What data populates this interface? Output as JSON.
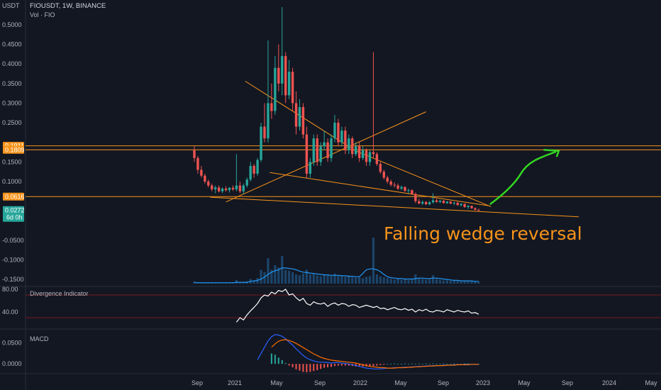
{
  "chart_data": {
    "type": "candlestick",
    "header": {
      "unit": "USDT",
      "symbol": "FIOUSDT, 1W, BINANCE",
      "volume_label": "Vol · FIO"
    },
    "price_axis": {
      "ylim": [
        -0.155,
        0.545
      ],
      "ticks": [
        "0.5000",
        "0.4500",
        "0.4000",
        "0.3500",
        "0.3000",
        "0.2500",
        "0.1500",
        "0.1000",
        "-0.0500",
        "-0.1000",
        "-0.1500"
      ],
      "tick_values": [
        0.5,
        0.45,
        0.4,
        0.35,
        0.3,
        0.25,
        0.15,
        0.1,
        -0.05,
        -0.1,
        -0.15
      ],
      "price_labels": [
        {
          "text": "0.1911",
          "value": 0.1911,
          "color": "#f7931a"
        },
        {
          "text": "0.1809",
          "value": 0.1809,
          "color": "#f7931a"
        },
        {
          "text": "0.0616",
          "value": 0.0616,
          "color": "#f7931a"
        },
        {
          "text": "0.0272",
          "value": 0.0272,
          "color": "#26a69a",
          "sub": "6d 0h"
        }
      ]
    },
    "x_axis": {
      "ticks": [
        "Sep",
        "2021",
        "May",
        "Sep",
        "2022",
        "May",
        "Sep",
        "2023",
        "May",
        "Sep",
        "2024",
        "May"
      ]
    },
    "horizontal_levels": [
      {
        "value": 0.1911,
        "color": "#f7931a"
      },
      {
        "value": 0.1809,
        "color": "#f7931a"
      },
      {
        "value": 0.0616,
        "color": "#f7931a"
      }
    ],
    "annotation": {
      "text": "Falling wedge reversal",
      "color": "#f7931a",
      "projection_color": "#34d621"
    },
    "indicators": {
      "divergence": {
        "label": "Divergence Indicator",
        "ticks": [
          "80.00",
          "40.00"
        ],
        "tick_values": [
          80,
          40
        ],
        "levels": [
          70,
          30
        ],
        "ylim": [
          10,
          85
        ]
      },
      "macd": {
        "label": "MACD",
        "ticks": [
          "0.0500",
          "0.0000"
        ],
        "tick_values": [
          0.05,
          0.0
        ],
        "ylim": [
          -0.02,
          0.08
        ],
        "colors": {
          "macd": "#2962ff",
          "signal": "#ff6d00",
          "hist_pos": "#26a69a",
          "hist_neg": "#ef5350"
        }
      }
    },
    "candles": [
      [
        0.18,
        0.19,
        0.15,
        0.16
      ],
      [
        0.16,
        0.165,
        0.12,
        0.13
      ],
      [
        0.13,
        0.14,
        0.11,
        0.115
      ],
      [
        0.115,
        0.12,
        0.095,
        0.1
      ],
      [
        0.1,
        0.105,
        0.085,
        0.09
      ],
      [
        0.09,
        0.095,
        0.075,
        0.08
      ],
      [
        0.08,
        0.09,
        0.07,
        0.085
      ],
      [
        0.085,
        0.09,
        0.072,
        0.075
      ],
      [
        0.075,
        0.085,
        0.07,
        0.082
      ],
      [
        0.082,
        0.088,
        0.074,
        0.078
      ],
      [
        0.078,
        0.086,
        0.072,
        0.084
      ],
      [
        0.084,
        0.09,
        0.076,
        0.08
      ],
      [
        0.08,
        0.17,
        0.075,
        0.09
      ],
      [
        0.09,
        0.1,
        0.07,
        0.075
      ],
      [
        0.075,
        0.095,
        0.068,
        0.09
      ],
      [
        0.09,
        0.11,
        0.085,
        0.105
      ],
      [
        0.105,
        0.15,
        0.1,
        0.14
      ],
      [
        0.14,
        0.145,
        0.11,
        0.12
      ],
      [
        0.12,
        0.16,
        0.115,
        0.155
      ],
      [
        0.155,
        0.25,
        0.15,
        0.24
      ],
      [
        0.24,
        0.3,
        0.2,
        0.21
      ],
      [
        0.21,
        0.46,
        0.2,
        0.3
      ],
      [
        0.3,
        0.35,
        0.26,
        0.28
      ],
      [
        0.28,
        0.42,
        0.27,
        0.39
      ],
      [
        0.39,
        0.45,
        0.33,
        0.35
      ],
      [
        0.35,
        0.545,
        0.32,
        0.42
      ],
      [
        0.42,
        0.43,
        0.3,
        0.32
      ],
      [
        0.32,
        0.41,
        0.31,
        0.38
      ],
      [
        0.38,
        0.39,
        0.28,
        0.3
      ],
      [
        0.3,
        0.33,
        0.22,
        0.24
      ],
      [
        0.24,
        0.31,
        0.23,
        0.29
      ],
      [
        0.29,
        0.3,
        0.21,
        0.22
      ],
      [
        0.22,
        0.24,
        0.11,
        0.12
      ],
      [
        0.12,
        0.16,
        0.11,
        0.15
      ],
      [
        0.15,
        0.22,
        0.14,
        0.21
      ],
      [
        0.21,
        0.22,
        0.14,
        0.15
      ],
      [
        0.15,
        0.2,
        0.14,
        0.19
      ],
      [
        0.19,
        0.23,
        0.18,
        0.2
      ],
      [
        0.2,
        0.21,
        0.15,
        0.16
      ],
      [
        0.16,
        0.22,
        0.15,
        0.21
      ],
      [
        0.21,
        0.27,
        0.2,
        0.25
      ],
      [
        0.25,
        0.26,
        0.19,
        0.2
      ],
      [
        0.2,
        0.24,
        0.19,
        0.23
      ],
      [
        0.23,
        0.24,
        0.17,
        0.18
      ],
      [
        0.18,
        0.22,
        0.17,
        0.21
      ],
      [
        0.21,
        0.215,
        0.16,
        0.17
      ],
      [
        0.17,
        0.2,
        0.165,
        0.19
      ],
      [
        0.19,
        0.2,
        0.15,
        0.16
      ],
      [
        0.16,
        0.19,
        0.155,
        0.18
      ],
      [
        0.18,
        0.185,
        0.14,
        0.15
      ],
      [
        0.15,
        0.18,
        0.14,
        0.175
      ],
      [
        0.175,
        0.43,
        0.16,
        0.17
      ],
      [
        0.17,
        0.175,
        0.14,
        0.145
      ],
      [
        0.145,
        0.15,
        0.12,
        0.125
      ],
      [
        0.125,
        0.13,
        0.105,
        0.11
      ],
      [
        0.11,
        0.115,
        0.095,
        0.1
      ],
      [
        0.1,
        0.105,
        0.088,
        0.092
      ],
      [
        0.092,
        0.098,
        0.085,
        0.09
      ],
      [
        0.09,
        0.095,
        0.078,
        0.082
      ],
      [
        0.082,
        0.09,
        0.078,
        0.086
      ],
      [
        0.086,
        0.088,
        0.074,
        0.076
      ],
      [
        0.076,
        0.082,
        0.07,
        0.078
      ],
      [
        0.078,
        0.08,
        0.066,
        0.068
      ],
      [
        0.068,
        0.072,
        0.045,
        0.05
      ],
      [
        0.05,
        0.056,
        0.042,
        0.044
      ],
      [
        0.044,
        0.052,
        0.04,
        0.048
      ],
      [
        0.048,
        0.05,
        0.04,
        0.042
      ],
      [
        0.042,
        0.05,
        0.04,
        0.047
      ],
      [
        0.047,
        0.07,
        0.044,
        0.052
      ],
      [
        0.052,
        0.056,
        0.046,
        0.048
      ],
      [
        0.048,
        0.054,
        0.045,
        0.051
      ],
      [
        0.051,
        0.053,
        0.044,
        0.045
      ],
      [
        0.045,
        0.05,
        0.043,
        0.049
      ],
      [
        0.049,
        0.05,
        0.042,
        0.044
      ],
      [
        0.044,
        0.048,
        0.04,
        0.046
      ],
      [
        0.046,
        0.048,
        0.038,
        0.04
      ],
      [
        0.04,
        0.045,
        0.036,
        0.043
      ],
      [
        0.043,
        0.044,
        0.033,
        0.035
      ],
      [
        0.035,
        0.04,
        0.03,
        0.038
      ],
      [
        0.038,
        0.039,
        0.03,
        0.032
      ],
      [
        0.032,
        0.034,
        0.026,
        0.028
      ],
      [
        0.028,
        0.031,
        0.025,
        0.027
      ]
    ],
    "volume_scale": 0.2,
    "volume": [
      0.05,
      0.03,
      0.02,
      0.02,
      0.02,
      0.02,
      0.02,
      0.02,
      0.02,
      0.02,
      0.02,
      0.03,
      0.08,
      0.04,
      0.03,
      0.05,
      0.1,
      0.07,
      0.12,
      0.3,
      0.25,
      0.55,
      0.3,
      0.4,
      0.35,
      0.6,
      0.3,
      0.28,
      0.25,
      0.2,
      0.18,
      0.22,
      0.3,
      0.2,
      0.22,
      0.18,
      0.16,
      0.2,
      0.18,
      0.17,
      0.22,
      0.18,
      0.16,
      0.15,
      0.18,
      0.14,
      0.13,
      0.14,
      0.12,
      0.15,
      0.16,
      1.0,
      0.2,
      0.16,
      0.14,
      0.12,
      0.1,
      0.09,
      0.1,
      0.08,
      0.09,
      0.08,
      0.1,
      0.2,
      0.12,
      0.1,
      0.08,
      0.09,
      0.18,
      0.1,
      0.08,
      0.07,
      0.07,
      0.06,
      0.06,
      0.07,
      0.06,
      0.06,
      0.05,
      0.05,
      0.05,
      0.04
    ],
    "volume_ma": [
      0.02,
      0.02,
      0.02,
      0.02,
      0.02,
      0.02,
      0.02,
      0.02,
      0.02,
      0.02,
      0.02,
      0.02,
      0.03,
      0.03,
      0.03,
      0.03,
      0.05,
      0.06,
      0.07,
      0.1,
      0.14,
      0.2,
      0.25,
      0.28,
      0.3,
      0.34,
      0.34,
      0.33,
      0.32,
      0.3,
      0.27,
      0.25,
      0.24,
      0.23,
      0.22,
      0.21,
      0.2,
      0.19,
      0.19,
      0.18,
      0.18,
      0.18,
      0.17,
      0.17,
      0.16,
      0.16,
      0.15,
      0.15,
      0.22,
      0.3,
      0.32,
      0.32,
      0.3,
      0.26,
      0.2,
      0.15,
      0.13,
      0.12,
      0.11,
      0.11,
      0.1,
      0.1,
      0.1,
      0.11,
      0.12,
      0.12,
      0.11,
      0.11,
      0.12,
      0.12,
      0.11,
      0.1,
      0.09,
      0.08,
      0.07,
      0.07,
      0.06,
      0.06,
      0.06,
      0.06,
      0.05,
      0.05
    ],
    "divergence": [
      null,
      null,
      null,
      null,
      null,
      null,
      null,
      null,
      null,
      null,
      null,
      null,
      22,
      30,
      26,
      35,
      42,
      48,
      55,
      65,
      70,
      68,
      75,
      72,
      78,
      76,
      80,
      70,
      72,
      65,
      60,
      64,
      55,
      52,
      58,
      55,
      54,
      56,
      50,
      54,
      56,
      52,
      55,
      54,
      50,
      53,
      52,
      48,
      50,
      52,
      50,
      48,
      50,
      46,
      47,
      44,
      46,
      48,
      45,
      44,
      46,
      43,
      45,
      40,
      44,
      42,
      45,
      41,
      40,
      43,
      42,
      40,
      44,
      42,
      40,
      43,
      41,
      40,
      42,
      38,
      39,
      36
    ],
    "macd_line": [
      null,
      null,
      null,
      null,
      null,
      null,
      null,
      null,
      null,
      null,
      null,
      null,
      null,
      null,
      null,
      null,
      null,
      null,
      0.01,
      0.025,
      0.04,
      0.055,
      0.065,
      0.07,
      0.069,
      0.066,
      0.06,
      0.052,
      0.045,
      0.036,
      0.028,
      0.02,
      0.014,
      0.01,
      0.007,
      0.005,
      0.004,
      0.004,
      0.003,
      0.002,
      0.003,
      0.003,
      0.002,
      0.001,
      0.0,
      -0.002,
      -0.004,
      -0.006,
      -0.008,
      -0.01,
      -0.011,
      -0.012,
      -0.012,
      -0.012,
      -0.011,
      -0.01,
      -0.01,
      -0.009,
      -0.009,
      -0.009,
      -0.008,
      -0.008,
      -0.007,
      -0.007,
      -0.006,
      -0.006,
      -0.005,
      -0.005,
      -0.004,
      -0.004,
      -0.004,
      -0.003,
      -0.003,
      -0.003,
      -0.002,
      -0.002,
      -0.002,
      -0.001,
      -0.001,
      -0.001,
      -0.001,
      -0.001
    ],
    "signal_line": [
      null,
      null,
      null,
      null,
      null,
      null,
      null,
      null,
      null,
      null,
      null,
      null,
      null,
      null,
      null,
      null,
      null,
      null,
      null,
      null,
      null,
      null,
      0.04,
      0.048,
      0.054,
      0.057,
      0.058,
      0.056,
      0.053,
      0.049,
      0.044,
      0.039,
      0.034,
      0.029,
      0.024,
      0.02,
      0.016,
      0.013,
      0.011,
      0.009,
      0.008,
      0.007,
      0.006,
      0.005,
      0.004,
      0.003,
      0.002,
      0.0,
      -0.002,
      -0.004,
      -0.006,
      -0.007,
      -0.008,
      -0.009,
      -0.009,
      -0.01,
      -0.01,
      -0.01,
      -0.009,
      -0.009,
      -0.009,
      -0.008,
      -0.008,
      -0.007,
      -0.007,
      -0.006,
      -0.006,
      -0.005,
      -0.005,
      -0.004,
      -0.004,
      -0.004,
      -0.003,
      -0.003,
      -0.003,
      -0.002,
      -0.002,
      -0.002,
      -0.002,
      -0.001,
      -0.001,
      -0.001
    ]
  }
}
